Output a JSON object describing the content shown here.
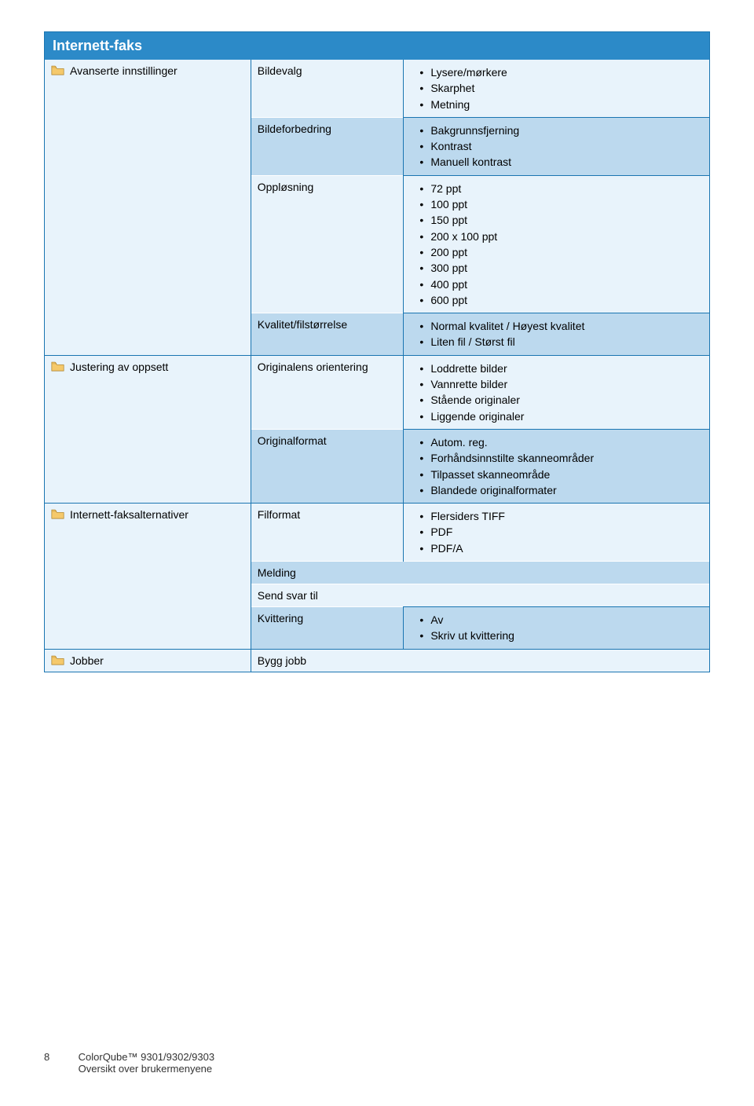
{
  "title": "Internett-faks",
  "sections": [
    {
      "left": "Avanserte innstillinger",
      "left_rowspan": 4,
      "rows": [
        {
          "mid": "Bildevalg",
          "right": [
            "Lysere/mørkere",
            "Skarphet",
            "Metning"
          ],
          "row_class": "row-a",
          "mid_border": "",
          "right_border": ""
        },
        {
          "mid": "Bildeforbedring",
          "right": [
            "Bakgrunnsfjerning",
            "Kontrast",
            "Manuell kontrast"
          ],
          "row_class": "row-b",
          "mid_border": "bt-white",
          "right_border": "bt-blue"
        },
        {
          "mid": "Oppløsning",
          "right": [
            "72 ppt",
            "100 ppt",
            "150 ppt",
            "200 x 100 ppt",
            "200 ppt",
            "300 ppt",
            "400 ppt",
            "600 ppt"
          ],
          "row_class": "row-a",
          "mid_border": "bt-white",
          "right_border": "bt-blue"
        },
        {
          "mid": "Kvalitet/filstørrelse",
          "right": [
            "Normal kvalitet / Høyest kvalitet",
            "Liten fil / Størst fil"
          ],
          "row_class": "row-b",
          "mid_border": "bt-white",
          "right_border": "bt-blue"
        }
      ]
    },
    {
      "left": "Justering av oppsett",
      "left_rowspan": 2,
      "rows": [
        {
          "mid": "Originalens orientering",
          "right": [
            "Loddrette bilder",
            "Vannrette bilder",
            "Stående originaler",
            "Liggende originaler"
          ],
          "row_class": "row-a",
          "mid_border": "bt-blue",
          "right_border": "bt-blue"
        },
        {
          "mid": "Originalformat",
          "right": [
            "Autom. reg.",
            "Forhåndsinnstilte skanneområder",
            "Tilpasset skanneområde",
            "Blandede originalformater"
          ],
          "row_class": "row-b",
          "mid_border": "bt-white",
          "right_border": "bt-blue"
        }
      ]
    },
    {
      "left": "Internett-faksalternativer",
      "left_rowspan": 4,
      "rows": [
        {
          "mid": "Filformat",
          "right": [
            "Flersiders TIFF",
            "PDF",
            "PDF/A"
          ],
          "row_class": "row-a",
          "mid_border": "bt-blue",
          "right_border": "bt-blue"
        },
        {
          "mid": "Melding",
          "right": null,
          "row_class": "row-b",
          "mid_border": "bt-white",
          "right_border": "",
          "mid_colspan": 2
        },
        {
          "mid": "Send svar til",
          "right": null,
          "row_class": "row-a",
          "mid_border": "bt-white",
          "right_border": "",
          "mid_colspan": 2
        },
        {
          "mid": "Kvittering",
          "right": [
            "Av",
            "Skriv ut kvittering"
          ],
          "row_class": "row-b",
          "mid_border": "bt-white",
          "right_border": "bt-blue"
        }
      ]
    },
    {
      "left": "Jobber",
      "left_rowspan": 1,
      "rows": [
        {
          "mid": "Bygg jobb",
          "right": null,
          "row_class": "row-a",
          "mid_border": "bt-blue",
          "right_border": "",
          "mid_colspan": 2
        }
      ]
    }
  ],
  "footer": {
    "page": "8",
    "line1": "ColorQube™ 9301/9302/9303",
    "line2": "Oversikt over brukermenyene"
  },
  "colors": {
    "title_bg": "#2c8ac8",
    "border": "#1a75b1",
    "row_light": "#e8f3fb",
    "row_dark": "#bcd9ee",
    "folder_fill": "#f5c96b",
    "folder_stroke": "#a87a1e"
  }
}
